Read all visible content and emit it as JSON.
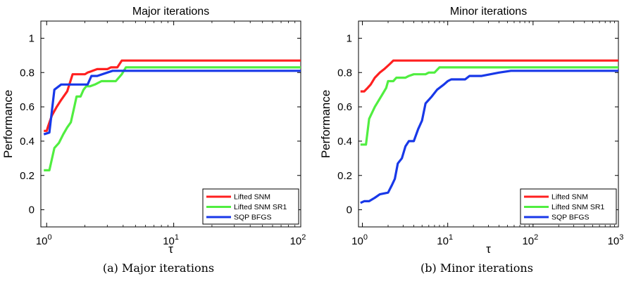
{
  "captions": [
    "(a) Major iterations",
    "(b) Minor iterations"
  ],
  "chart_data": [
    {
      "type": "line",
      "title": "Major iterations",
      "xlabel": "τ",
      "ylabel": "Performance",
      "xscale": "log",
      "xlim": [
        0.9,
        100
      ],
      "ylim": [
        -0.1,
        1.1
      ],
      "xticks": [
        {
          "v": 1,
          "b": "10",
          "e": "0"
        },
        {
          "v": 10,
          "b": "10",
          "e": "1"
        },
        {
          "v": 100,
          "b": "10",
          "e": "2"
        }
      ],
      "yticks": [
        {
          "v": 0,
          "label": "0"
        },
        {
          "v": 0.2,
          "label": "0.2"
        },
        {
          "v": 0.4,
          "label": "0.4"
        },
        {
          "v": 0.6,
          "label": "0.6"
        },
        {
          "v": 0.8,
          "label": "0.8"
        },
        {
          "v": 1,
          "label": "1"
        }
      ],
      "grid": false,
      "legend": "bottom-right",
      "series": [
        {
          "name": "Lifted SNM",
          "color": "#ff2020",
          "points": [
            [
              0.95,
              0.46
            ],
            [
              1.0,
              0.46
            ],
            [
              1.03,
              0.49
            ],
            [
              1.1,
              0.55
            ],
            [
              1.2,
              0.6
            ],
            [
              1.3,
              0.64
            ],
            [
              1.45,
              0.69
            ],
            [
              1.6,
              0.79
            ],
            [
              2.0,
              0.79
            ],
            [
              2.1,
              0.8
            ],
            [
              2.3,
              0.81
            ],
            [
              2.5,
              0.82
            ],
            [
              3.0,
              0.82
            ],
            [
              3.2,
              0.83
            ],
            [
              3.6,
              0.83
            ],
            [
              3.9,
              0.87
            ],
            [
              100,
              0.87
            ]
          ]
        },
        {
          "name": "Lifted SNM SR1",
          "color": "#50ee40",
          "points": [
            [
              0.95,
              0.23
            ],
            [
              1.05,
              0.23
            ],
            [
              1.15,
              0.36
            ],
            [
              1.25,
              0.39
            ],
            [
              1.35,
              0.44
            ],
            [
              1.45,
              0.48
            ],
            [
              1.55,
              0.51
            ],
            [
              1.65,
              0.6
            ],
            [
              1.72,
              0.66
            ],
            [
              1.85,
              0.66
            ],
            [
              1.95,
              0.7
            ],
            [
              2.05,
              0.72
            ],
            [
              2.2,
              0.72
            ],
            [
              2.4,
              0.73
            ],
            [
              2.7,
              0.75
            ],
            [
              3.5,
              0.75
            ],
            [
              3.9,
              0.79
            ],
            [
              4.2,
              0.83
            ],
            [
              100,
              0.83
            ]
          ]
        },
        {
          "name": "SQP BFGS",
          "color": "#1838e8",
          "points": [
            [
              0.95,
              0.44
            ],
            [
              1.05,
              0.45
            ],
            [
              1.15,
              0.7
            ],
            [
              1.3,
              0.73
            ],
            [
              2.1,
              0.73
            ],
            [
              2.25,
              0.78
            ],
            [
              2.5,
              0.78
            ],
            [
              3.0,
              0.8
            ],
            [
              3.3,
              0.81
            ],
            [
              100,
              0.81
            ]
          ]
        }
      ]
    },
    {
      "type": "line",
      "title": "Minor iterations",
      "xlabel": "τ",
      "ylabel": "Performance",
      "xscale": "log",
      "xlim": [
        0.9,
        1000
      ],
      "ylim": [
        -0.1,
        1.1
      ],
      "xticks": [
        {
          "v": 1,
          "b": "10",
          "e": "0"
        },
        {
          "v": 10,
          "b": "10",
          "e": "1"
        },
        {
          "v": 100,
          "b": "10",
          "e": "2"
        },
        {
          "v": 1000,
          "b": "10",
          "e": "3"
        }
      ],
      "yticks": [
        {
          "v": 0,
          "label": "0"
        },
        {
          "v": 0.2,
          "label": "0.2"
        },
        {
          "v": 0.4,
          "label": "0.4"
        },
        {
          "v": 0.6,
          "label": "0.6"
        },
        {
          "v": 0.8,
          "label": "0.8"
        },
        {
          "v": 1,
          "label": "1"
        }
      ],
      "grid": false,
      "legend": "bottom-right",
      "series": [
        {
          "name": "Lifted SNM",
          "color": "#ff2020",
          "points": [
            [
              0.95,
              0.69
            ],
            [
              1.05,
              0.69
            ],
            [
              1.15,
              0.71
            ],
            [
              1.25,
              0.73
            ],
            [
              1.4,
              0.77
            ],
            [
              1.6,
              0.8
            ],
            [
              1.8,
              0.82
            ],
            [
              2.1,
              0.85
            ],
            [
              2.3,
              0.87
            ],
            [
              1000,
              0.87
            ]
          ]
        },
        {
          "name": "Lifted SNM SR1",
          "color": "#50ee40",
          "points": [
            [
              0.95,
              0.38
            ],
            [
              1.1,
              0.38
            ],
            [
              1.2,
              0.53
            ],
            [
              1.4,
              0.6
            ],
            [
              1.7,
              0.67
            ],
            [
              1.9,
              0.71
            ],
            [
              2.0,
              0.75
            ],
            [
              2.3,
              0.75
            ],
            [
              2.5,
              0.77
            ],
            [
              3.2,
              0.77
            ],
            [
              3.5,
              0.78
            ],
            [
              4.0,
              0.79
            ],
            [
              5.5,
              0.79
            ],
            [
              6.0,
              0.8
            ],
            [
              7.0,
              0.8
            ],
            [
              8.0,
              0.83
            ],
            [
              1000,
              0.83
            ]
          ]
        },
        {
          "name": "SQP BFGS",
          "color": "#1838e8",
          "points": [
            [
              0.95,
              0.04
            ],
            [
              1.05,
              0.05
            ],
            [
              1.2,
              0.05
            ],
            [
              1.4,
              0.07
            ],
            [
              1.6,
              0.09
            ],
            [
              2.0,
              0.1
            ],
            [
              2.2,
              0.14
            ],
            [
              2.4,
              0.18
            ],
            [
              2.6,
              0.27
            ],
            [
              2.9,
              0.3
            ],
            [
              3.2,
              0.37
            ],
            [
              3.5,
              0.4
            ],
            [
              4.0,
              0.4
            ],
            [
              4.5,
              0.47
            ],
            [
              5.0,
              0.52
            ],
            [
              5.5,
              0.62
            ],
            [
              6.5,
              0.66
            ],
            [
              7.5,
              0.7
            ],
            [
              9.0,
              0.73
            ],
            [
              10.0,
              0.75
            ],
            [
              11.0,
              0.76
            ],
            [
              16.0,
              0.76
            ],
            [
              18.0,
              0.78
            ],
            [
              25.0,
              0.78
            ],
            [
              40.0,
              0.8
            ],
            [
              55.0,
              0.81
            ],
            [
              1000,
              0.81
            ]
          ]
        }
      ]
    }
  ]
}
